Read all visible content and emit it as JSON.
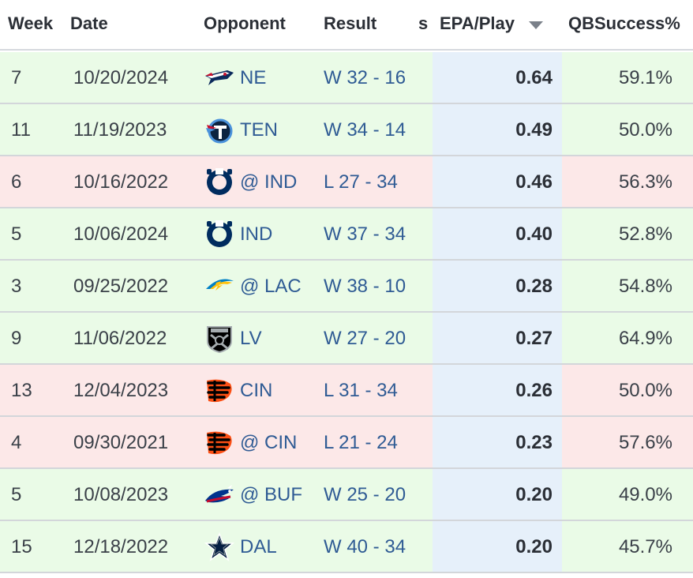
{
  "header": {
    "week": "Week",
    "date": "Date",
    "opponent": "Opponent",
    "result": "Result",
    "truncated_col": "s",
    "epa": "EPA/Play",
    "qbsuccess": "QBSuccess%"
  },
  "sort": {
    "column": "EPA/Play",
    "direction": "descending",
    "icon": "sort-desc-icon"
  },
  "colors": {
    "win_row": "#eafbe7",
    "loss_row": "#fce8e8",
    "epa_column": "#e6f0fa",
    "link": "#2f5b94"
  },
  "rows": [
    {
      "week": "7",
      "date": "10/20/2024",
      "opponent": "NE",
      "logo": "patriots-logo-icon",
      "result": "W 32 - 16",
      "outcome": "win",
      "epa": "0.64",
      "qbsuccess": "59.1%"
    },
    {
      "week": "11",
      "date": "11/19/2023",
      "opponent": "TEN",
      "logo": "titans-logo-icon",
      "result": "W 34 - 14",
      "outcome": "win",
      "epa": "0.49",
      "qbsuccess": "50.0%"
    },
    {
      "week": "6",
      "date": "10/16/2022",
      "opponent": "@ IND",
      "logo": "colts-logo-icon",
      "result": "L 27 - 34",
      "outcome": "loss",
      "epa": "0.46",
      "qbsuccess": "56.3%"
    },
    {
      "week": "5",
      "date": "10/06/2024",
      "opponent": "IND",
      "logo": "colts-logo-icon",
      "result": "W 37 - 34",
      "outcome": "win",
      "epa": "0.40",
      "qbsuccess": "52.8%"
    },
    {
      "week": "3",
      "date": "09/25/2022",
      "opponent": "@ LAC",
      "logo": "chargers-logo-icon",
      "result": "W 38 - 10",
      "outcome": "win",
      "epa": "0.28",
      "qbsuccess": "54.8%"
    },
    {
      "week": "9",
      "date": "11/06/2022",
      "opponent": "LV",
      "logo": "raiders-logo-icon",
      "result": "W 27 - 20",
      "outcome": "win",
      "epa": "0.27",
      "qbsuccess": "64.9%"
    },
    {
      "week": "13",
      "date": "12/04/2023",
      "opponent": "CIN",
      "logo": "bengals-logo-icon",
      "result": "L 31 - 34",
      "outcome": "loss",
      "epa": "0.26",
      "qbsuccess": "50.0%"
    },
    {
      "week": "4",
      "date": "09/30/2021",
      "opponent": "@ CIN",
      "logo": "bengals-logo-icon",
      "result": "L 21 - 24",
      "outcome": "loss",
      "epa": "0.23",
      "qbsuccess": "57.6%"
    },
    {
      "week": "5",
      "date": "10/08/2023",
      "opponent": "@ BUF",
      "logo": "bills-logo-icon",
      "result": "W 25 - 20",
      "outcome": "win",
      "epa": "0.20",
      "qbsuccess": "49.0%"
    },
    {
      "week": "15",
      "date": "12/18/2022",
      "opponent": "DAL",
      "logo": "cowboys-logo-icon",
      "result": "W 40 - 34",
      "outcome": "win",
      "epa": "0.20",
      "qbsuccess": "45.7%"
    }
  ]
}
